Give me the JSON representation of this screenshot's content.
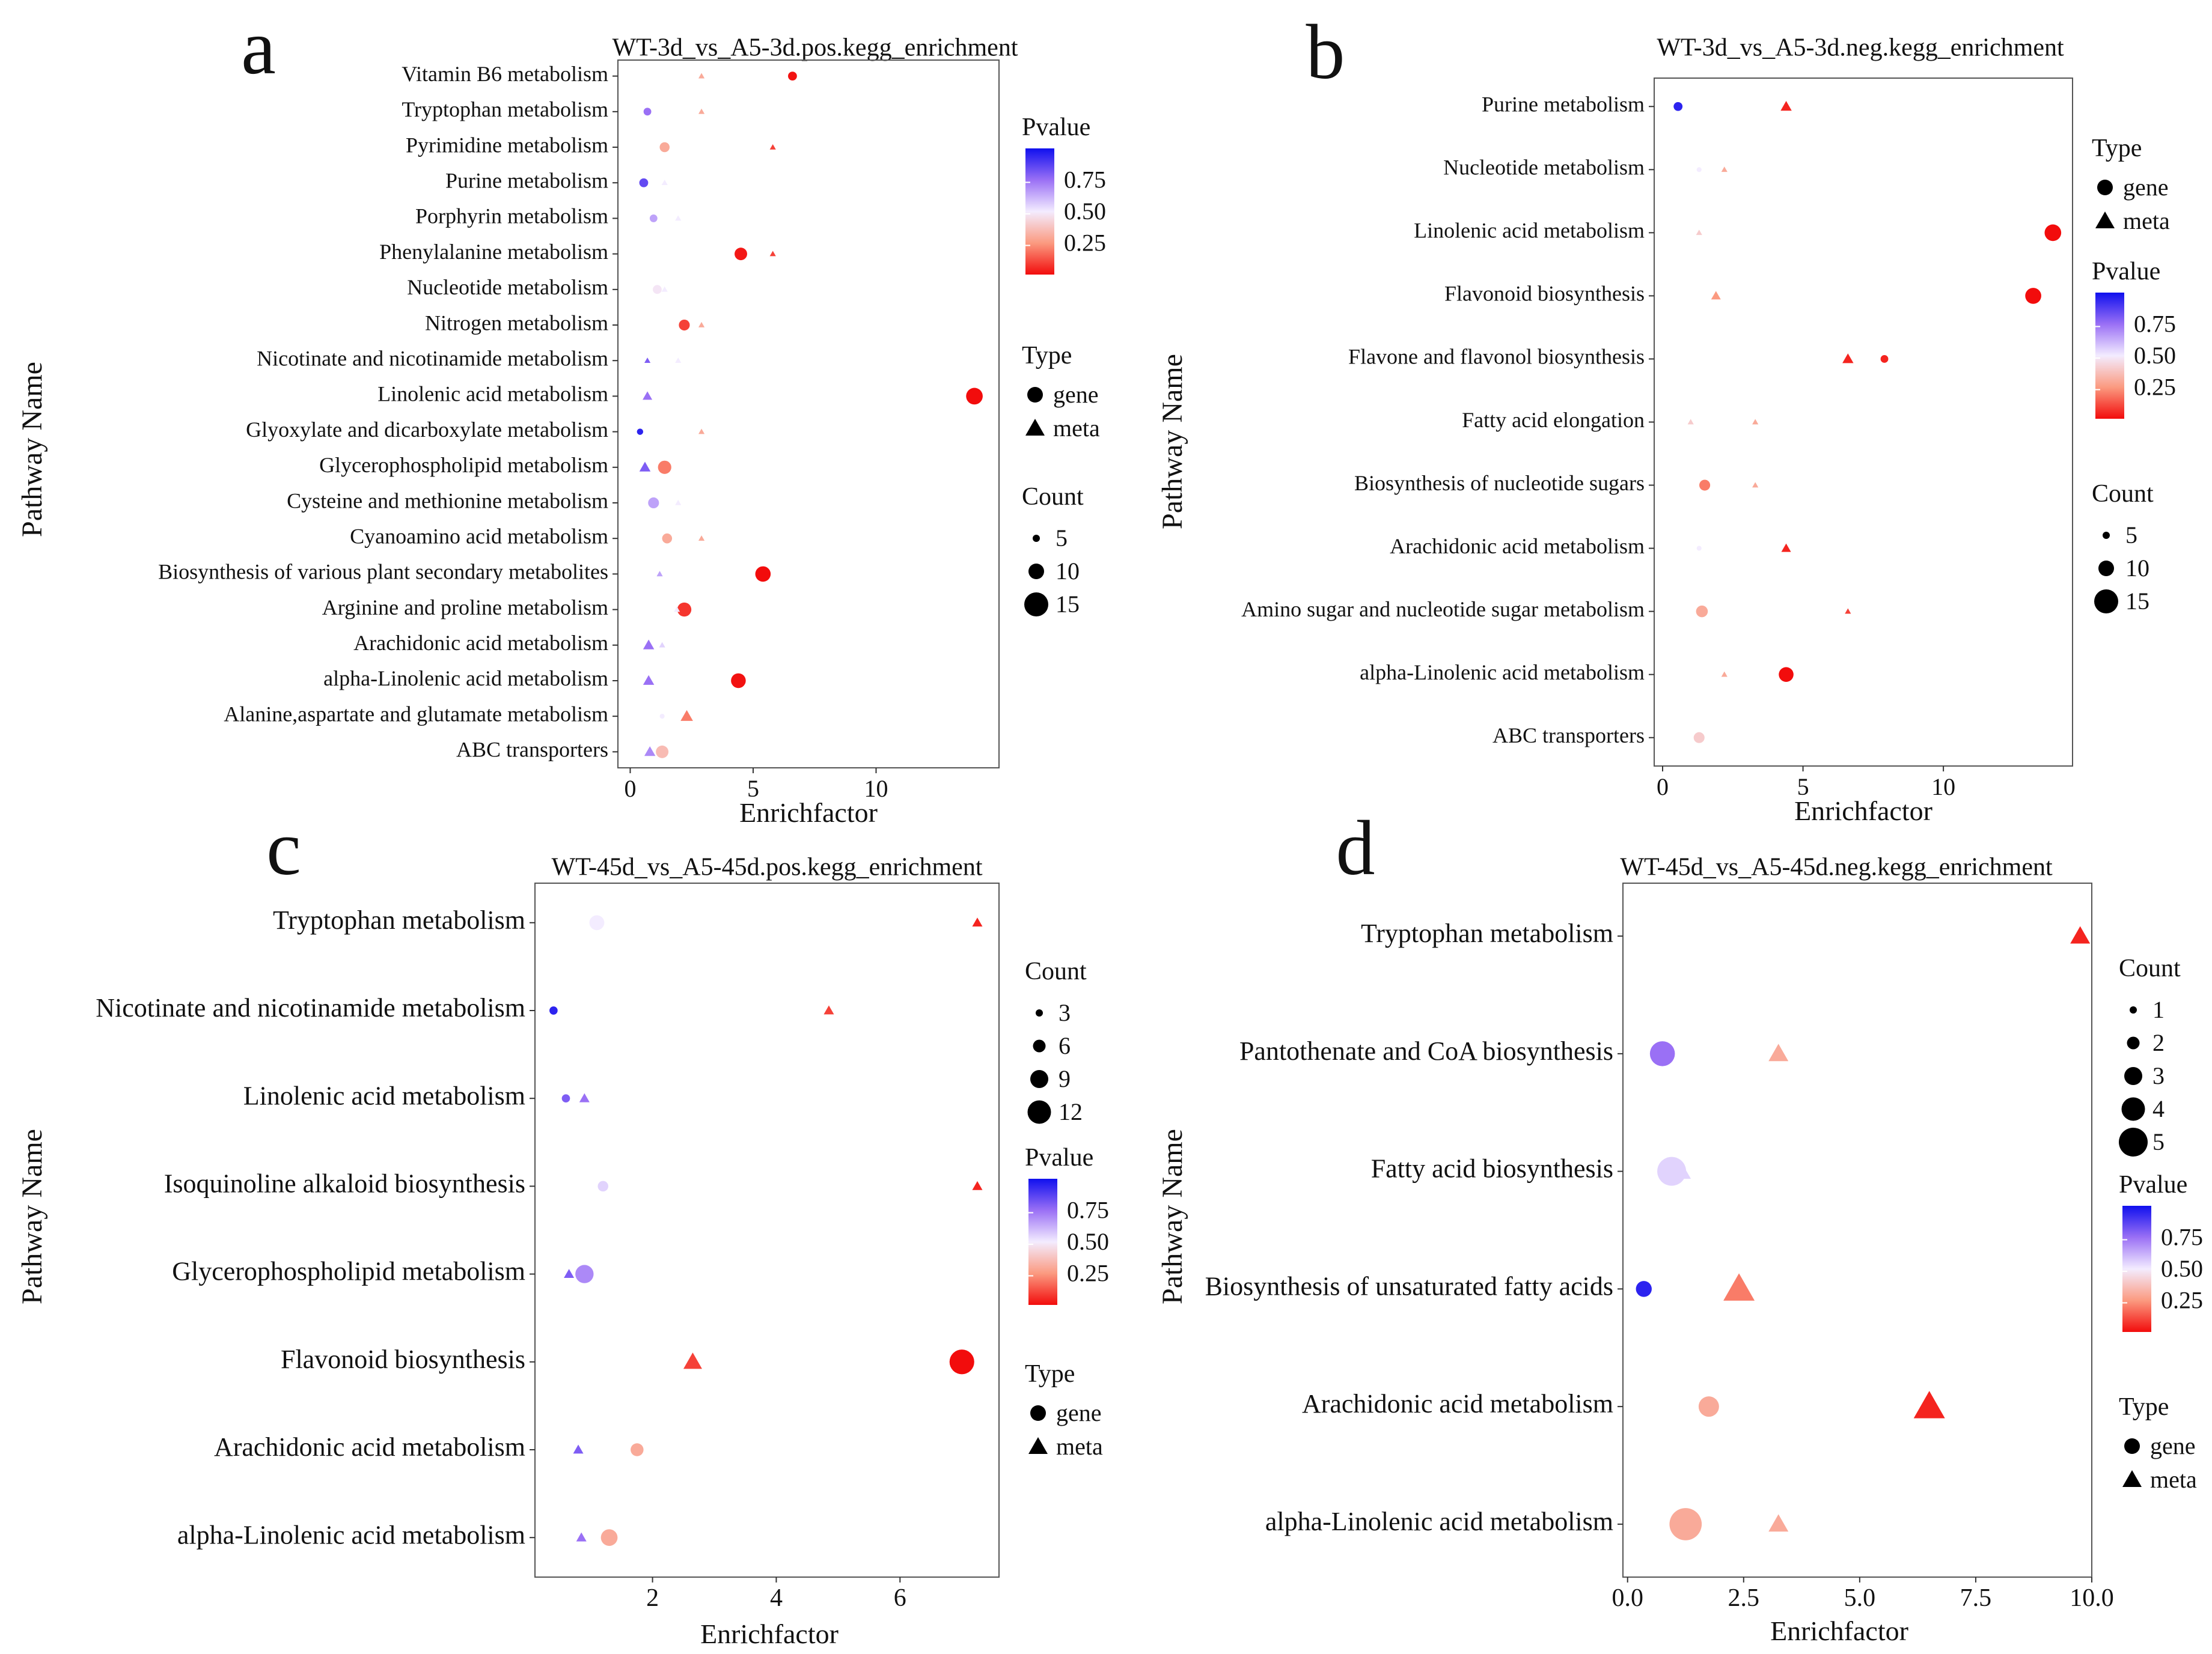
{
  "page": {
    "panel_letters": [
      "a",
      "b",
      "c",
      "d"
    ]
  },
  "chart_data": [
    {
      "type": "scatter",
      "panel": "a",
      "title": "WT-3d_vs_A5-3d.pos.kegg_enrichment",
      "xlabel": "Enrichfactor",
      "ylabel": "Pathway Name",
      "xlim": [
        -0.5,
        15.0
      ],
      "xticks": [
        0,
        5,
        10
      ],
      "categories": [
        "Vitamin B6 metabolism",
        "Tryptophan metabolism",
        "Pyrimidine metabolism",
        "Purine metabolism",
        "Porphyrin metabolism",
        "Phenylalanine metabolism",
        "Nucleotide metabolism",
        "Nitrogen metabolism",
        "Nicotinate and nicotinamide metabolism",
        "Linolenic acid metabolism",
        "Glyoxylate and dicarboxylate metabolism",
        "Glycerophospholipid metabolism",
        "Cysteine and methionine metabolism",
        "Cyanoamino acid metabolism",
        "Biosynthesis of various plant secondary metabolites",
        "Arginine and proline metabolism",
        "Arachidonic acid metabolism",
        "alpha-Linolenic acid metabolism",
        "Alanine,aspartate and glutamate metabolism",
        "ABC transporters"
      ],
      "points": [
        {
          "cat": 0,
          "type": "meta",
          "x": 2.9,
          "count": 1,
          "p": 0.3
        },
        {
          "cat": 0,
          "type": "gene",
          "x": 6.6,
          "count": 4,
          "p": 0.02
        },
        {
          "cat": 1,
          "type": "gene",
          "x": 0.7,
          "count": 3,
          "p": 0.75
        },
        {
          "cat": 1,
          "type": "meta",
          "x": 2.9,
          "count": 1,
          "p": 0.3
        },
        {
          "cat": 2,
          "type": "gene",
          "x": 1.4,
          "count": 5,
          "p": 0.3
        },
        {
          "cat": 2,
          "type": "meta",
          "x": 5.8,
          "count": 1,
          "p": 0.1
        },
        {
          "cat": 3,
          "type": "gene",
          "x": 0.55,
          "count": 4,
          "p": 0.85
        },
        {
          "cat": 3,
          "type": "meta",
          "x": 1.4,
          "count": 1,
          "p": 0.5
        },
        {
          "cat": 4,
          "type": "gene",
          "x": 0.95,
          "count": 3,
          "p": 0.65
        },
        {
          "cat": 4,
          "type": "meta",
          "x": 1.95,
          "count": 1,
          "p": 0.5
        },
        {
          "cat": 5,
          "type": "gene",
          "x": 4.5,
          "count": 8,
          "p": 0.03
        },
        {
          "cat": 5,
          "type": "meta",
          "x": 5.8,
          "count": 1,
          "p": 0.1
        },
        {
          "cat": 6,
          "type": "gene",
          "x": 1.1,
          "count": 4,
          "p": 0.48
        },
        {
          "cat": 6,
          "type": "meta",
          "x": 1.4,
          "count": 1,
          "p": 0.5
        },
        {
          "cat": 7,
          "type": "gene",
          "x": 2.2,
          "count": 6,
          "p": 0.1
        },
        {
          "cat": 7,
          "type": "meta",
          "x": 2.9,
          "count": 1,
          "p": 0.3
        },
        {
          "cat": 8,
          "type": "meta",
          "x": 0.7,
          "count": 1,
          "p": 0.8
        },
        {
          "cat": 8,
          "type": "meta",
          "x": 1.95,
          "count": 1,
          "p": 0.5
        },
        {
          "cat": 9,
          "type": "meta",
          "x": 0.7,
          "count": 3,
          "p": 0.75
        },
        {
          "cat": 9,
          "type": "gene",
          "x": 14.0,
          "count": 14,
          "p": 0.01
        },
        {
          "cat": 10,
          "type": "gene",
          "x": 0.4,
          "count": 2,
          "p": 0.95
        },
        {
          "cat": 10,
          "type": "meta",
          "x": 2.9,
          "count": 1,
          "p": 0.3
        },
        {
          "cat": 11,
          "type": "meta",
          "x": 0.6,
          "count": 4,
          "p": 0.8
        },
        {
          "cat": 11,
          "type": "gene",
          "x": 1.4,
          "count": 9,
          "p": 0.2
        },
        {
          "cat": 12,
          "type": "gene",
          "x": 0.95,
          "count": 6,
          "p": 0.65
        },
        {
          "cat": 12,
          "type": "meta",
          "x": 1.95,
          "count": 1,
          "p": 0.5
        },
        {
          "cat": 13,
          "type": "gene",
          "x": 1.5,
          "count": 5,
          "p": 0.3
        },
        {
          "cat": 13,
          "type": "meta",
          "x": 2.9,
          "count": 1,
          "p": 0.3
        },
        {
          "cat": 14,
          "type": "meta",
          "x": 1.2,
          "count": 1,
          "p": 0.65
        },
        {
          "cat": 14,
          "type": "gene",
          "x": 5.4,
          "count": 12,
          "p": 0.01
        },
        {
          "cat": 15,
          "type": "gene",
          "x": 2.2,
          "count": 10,
          "p": 0.08
        },
        {
          "cat": 15,
          "type": "meta",
          "x": 1.9,
          "count": 1,
          "p": 0.5
        },
        {
          "cat": 16,
          "type": "meta",
          "x": 0.75,
          "count": 4,
          "p": 0.75
        },
        {
          "cat": 16,
          "type": "meta",
          "x": 1.3,
          "count": 1,
          "p": 0.55
        },
        {
          "cat": 17,
          "type": "meta",
          "x": 0.75,
          "count": 4,
          "p": 0.75
        },
        {
          "cat": 17,
          "type": "gene",
          "x": 4.4,
          "count": 11,
          "p": 0.02
        },
        {
          "cat": 18,
          "type": "gene",
          "x": 1.3,
          "count": 1,
          "p": 0.5
        },
        {
          "cat": 18,
          "type": "meta",
          "x": 2.3,
          "count": 5,
          "p": 0.2
        },
        {
          "cat": 19,
          "type": "meta",
          "x": 0.8,
          "count": 4,
          "p": 0.7
        },
        {
          "cat": 19,
          "type": "gene",
          "x": 1.3,
          "count": 8,
          "p": 0.35
        }
      ],
      "legend": {
        "order": [
          "pvalue",
          "type",
          "count"
        ],
        "pvalue": {
          "title": "Pvalue",
          "ticks": [
            "0.75",
            "0.50",
            "0.25"
          ]
        },
        "type": {
          "title": "Type",
          "items": [
            "gene",
            "meta"
          ]
        },
        "count": {
          "title": "Count",
          "items": [
            "5",
            "10",
            "15"
          ]
        }
      }
    },
    {
      "type": "scatter",
      "panel": "b",
      "title": "WT-3d_vs_A5-3d.neg.kegg_enrichment",
      "xlabel": "Enrichfactor",
      "ylabel": "Pathway Name",
      "xlim": [
        -0.3,
        14.6
      ],
      "xticks": [
        0,
        5,
        10
      ],
      "categories": [
        "Purine metabolism",
        "Nucleotide metabolism",
        "Linolenic acid metabolism",
        "Flavonoid biosynthesis",
        "Flavone and flavonol biosynthesis",
        "Fatty acid elongation",
        "Biosynthesis of nucleotide sugars",
        "Arachidonic acid metabolism",
        "Amino sugar and nucleotide sugar metabolism",
        "alpha-Linolenic acid metabolism",
        "ABC transporters"
      ],
      "points": [
        {
          "cat": 0,
          "type": "gene",
          "x": 0.55,
          "count": 4,
          "p": 0.95
        },
        {
          "cat": 0,
          "type": "meta",
          "x": 4.4,
          "count": 4,
          "p": 0.05
        },
        {
          "cat": 1,
          "type": "gene",
          "x": 1.3,
          "count": 1,
          "p": 0.5
        },
        {
          "cat": 1,
          "type": "meta",
          "x": 2.2,
          "count": 1,
          "p": 0.3
        },
        {
          "cat": 2,
          "type": "meta",
          "x": 1.3,
          "count": 1,
          "p": 0.4
        },
        {
          "cat": 2,
          "type": "gene",
          "x": 13.9,
          "count": 14,
          "p": 0.01
        },
        {
          "cat": 3,
          "type": "meta",
          "x": 1.9,
          "count": 3,
          "p": 0.25
        },
        {
          "cat": 3,
          "type": "gene",
          "x": 13.2,
          "count": 13,
          "p": 0.01
        },
        {
          "cat": 4,
          "type": "meta",
          "x": 6.6,
          "count": 4,
          "p": 0.05
        },
        {
          "cat": 4,
          "type": "gene",
          "x": 7.9,
          "count": 3,
          "p": 0.05
        },
        {
          "cat": 5,
          "type": "meta",
          "x": 1.0,
          "count": 1,
          "p": 0.4
        },
        {
          "cat": 5,
          "type": "meta",
          "x": 3.3,
          "count": 1,
          "p": 0.3
        },
        {
          "cat": 6,
          "type": "gene",
          "x": 1.5,
          "count": 6,
          "p": 0.2
        },
        {
          "cat": 6,
          "type": "meta",
          "x": 3.3,
          "count": 1,
          "p": 0.3
        },
        {
          "cat": 7,
          "type": "gene",
          "x": 1.3,
          "count": 1,
          "p": 0.5
        },
        {
          "cat": 7,
          "type": "meta",
          "x": 4.4,
          "count": 3,
          "p": 0.05
        },
        {
          "cat": 8,
          "type": "gene",
          "x": 1.4,
          "count": 7,
          "p": 0.3
        },
        {
          "cat": 8,
          "type": "meta",
          "x": 6.6,
          "count": 1,
          "p": 0.1
        },
        {
          "cat": 9,
          "type": "meta",
          "x": 2.2,
          "count": 1,
          "p": 0.3
        },
        {
          "cat": 9,
          "type": "gene",
          "x": 4.4,
          "count": 11,
          "p": 0.01
        },
        {
          "cat": 10,
          "type": "gene",
          "x": 1.3,
          "count": 6,
          "p": 0.4
        }
      ],
      "legend": {
        "order": [
          "type",
          "pvalue",
          "count"
        ],
        "pvalue": {
          "title": "Pvalue",
          "ticks": [
            "0.75",
            "0.50",
            "0.25"
          ]
        },
        "type": {
          "title": "Type",
          "items": [
            "gene",
            "meta"
          ]
        },
        "count": {
          "title": "Count",
          "items": [
            "5",
            "10",
            "15"
          ]
        }
      }
    },
    {
      "type": "scatter",
      "panel": "c",
      "title": "WT-45d_vs_A5-45d.pos.kegg_enrichment",
      "xlabel": "Enrichfactor",
      "ylabel": "Pathway Name",
      "xlim": [
        0.1,
        7.6
      ],
      "xticks": [
        2,
        4,
        6
      ],
      "categories": [
        "Tryptophan metabolism",
        "Nicotinate and nicotinamide metabolism",
        "Linolenic acid metabolism",
        "Isoquinoline alkaloid biosynthesis",
        "Glycerophospholipid metabolism",
        "Flavonoid biosynthesis",
        "Arachidonic acid metabolism",
        "alpha-Linolenic acid metabolism"
      ],
      "points": [
        {
          "cat": 0,
          "type": "gene",
          "x": 1.1,
          "count": 4,
          "p": 0.5
        },
        {
          "cat": 0,
          "type": "meta",
          "x": 7.25,
          "count": 1,
          "p": 0.05
        },
        {
          "cat": 1,
          "type": "gene",
          "x": 0.4,
          "count": 1,
          "p": 0.95
        },
        {
          "cat": 1,
          "type": "meta",
          "x": 4.85,
          "count": 1,
          "p": 0.1
        },
        {
          "cat": 2,
          "type": "gene",
          "x": 0.6,
          "count": 1,
          "p": 0.8
        },
        {
          "cat": 2,
          "type": "meta",
          "x": 0.9,
          "count": 1,
          "p": 0.75
        },
        {
          "cat": 3,
          "type": "gene",
          "x": 1.2,
          "count": 2,
          "p": 0.55
        },
        {
          "cat": 3,
          "type": "meta",
          "x": 7.25,
          "count": 1,
          "p": 0.05
        },
        {
          "cat": 4,
          "type": "meta",
          "x": 0.65,
          "count": 1,
          "p": 0.8
        },
        {
          "cat": 4,
          "type": "gene",
          "x": 0.9,
          "count": 6,
          "p": 0.7
        },
        {
          "cat": 5,
          "type": "meta",
          "x": 2.65,
          "count": 4,
          "p": 0.1
        },
        {
          "cat": 5,
          "type": "gene",
          "x": 7.0,
          "count": 11,
          "p": 0.01
        },
        {
          "cat": 6,
          "type": "meta",
          "x": 0.8,
          "count": 1,
          "p": 0.8
        },
        {
          "cat": 6,
          "type": "gene",
          "x": 1.75,
          "count": 3,
          "p": 0.3
        },
        {
          "cat": 7,
          "type": "meta",
          "x": 0.85,
          "count": 1,
          "p": 0.75
        },
        {
          "cat": 7,
          "type": "gene",
          "x": 1.3,
          "count": 5,
          "p": 0.3
        }
      ],
      "legend": {
        "order": [
          "count",
          "pvalue",
          "type"
        ],
        "pvalue": {
          "title": "Pvalue",
          "ticks": [
            "0.75",
            "0.50",
            "0.25"
          ]
        },
        "type": {
          "title": "Type",
          "items": [
            "gene",
            "meta"
          ]
        },
        "count": {
          "title": "Count",
          "items": [
            "3",
            "6",
            "9",
            "12"
          ]
        }
      }
    },
    {
      "type": "scatter",
      "panel": "d",
      "title": "WT-45d_vs_A5-45d.neg.kegg_enrichment",
      "xlabel": "Enrichfactor",
      "ylabel": "Pathway Name",
      "xlim": [
        -0.1,
        10.0
      ],
      "xticks": [
        0.0,
        2.5,
        5.0,
        7.5,
        10.0
      ],
      "xticklabels": [
        "0.0",
        "2.5",
        "5.0",
        "7.5",
        "10.0"
      ],
      "categories": [
        "Tryptophan metabolism",
        "Pantothenate and CoA biosynthesis",
        "Fatty acid biosynthesis",
        "Biosynthesis of unsaturated fatty acids",
        "Arachidonic acid metabolism",
        "alpha-Linolenic acid metabolism"
      ],
      "points": [
        {
          "cat": 0,
          "type": "meta",
          "x": 9.75,
          "count": 1,
          "p": 0.05
        },
        {
          "cat": 1,
          "type": "gene",
          "x": 0.75,
          "count": 3,
          "p": 0.75
        },
        {
          "cat": 1,
          "type": "meta",
          "x": 3.25,
          "count": 1,
          "p": 0.3
        },
        {
          "cat": 2,
          "type": "gene",
          "x": 0.95,
          "count": 4,
          "p": 0.55
        },
        {
          "cat": 2,
          "type": "meta",
          "x": 1.15,
          "count": 1,
          "p": 0.55
        },
        {
          "cat": 3,
          "type": "gene",
          "x": 0.35,
          "count": 1,
          "p": 0.95
        },
        {
          "cat": 3,
          "type": "meta",
          "x": 2.4,
          "count": 3,
          "p": 0.2
        },
        {
          "cat": 4,
          "type": "gene",
          "x": 1.75,
          "count": 2,
          "p": 0.3
        },
        {
          "cat": 4,
          "type": "meta",
          "x": 6.5,
          "count": 3,
          "p": 0.05
        },
        {
          "cat": 5,
          "type": "gene",
          "x": 1.25,
          "count": 5,
          "p": 0.3
        },
        {
          "cat": 5,
          "type": "meta",
          "x": 3.25,
          "count": 1,
          "p": 0.3
        }
      ],
      "legend": {
        "order": [
          "count",
          "pvalue",
          "type"
        ],
        "pvalue": {
          "title": "Pvalue",
          "ticks": [
            "0.75",
            "0.50",
            "0.25"
          ]
        },
        "type": {
          "title": "Type",
          "items": [
            "gene",
            "meta"
          ]
        },
        "count": {
          "title": "Count",
          "items": [
            "1",
            "2",
            "3",
            "4",
            "5"
          ]
        }
      }
    }
  ]
}
